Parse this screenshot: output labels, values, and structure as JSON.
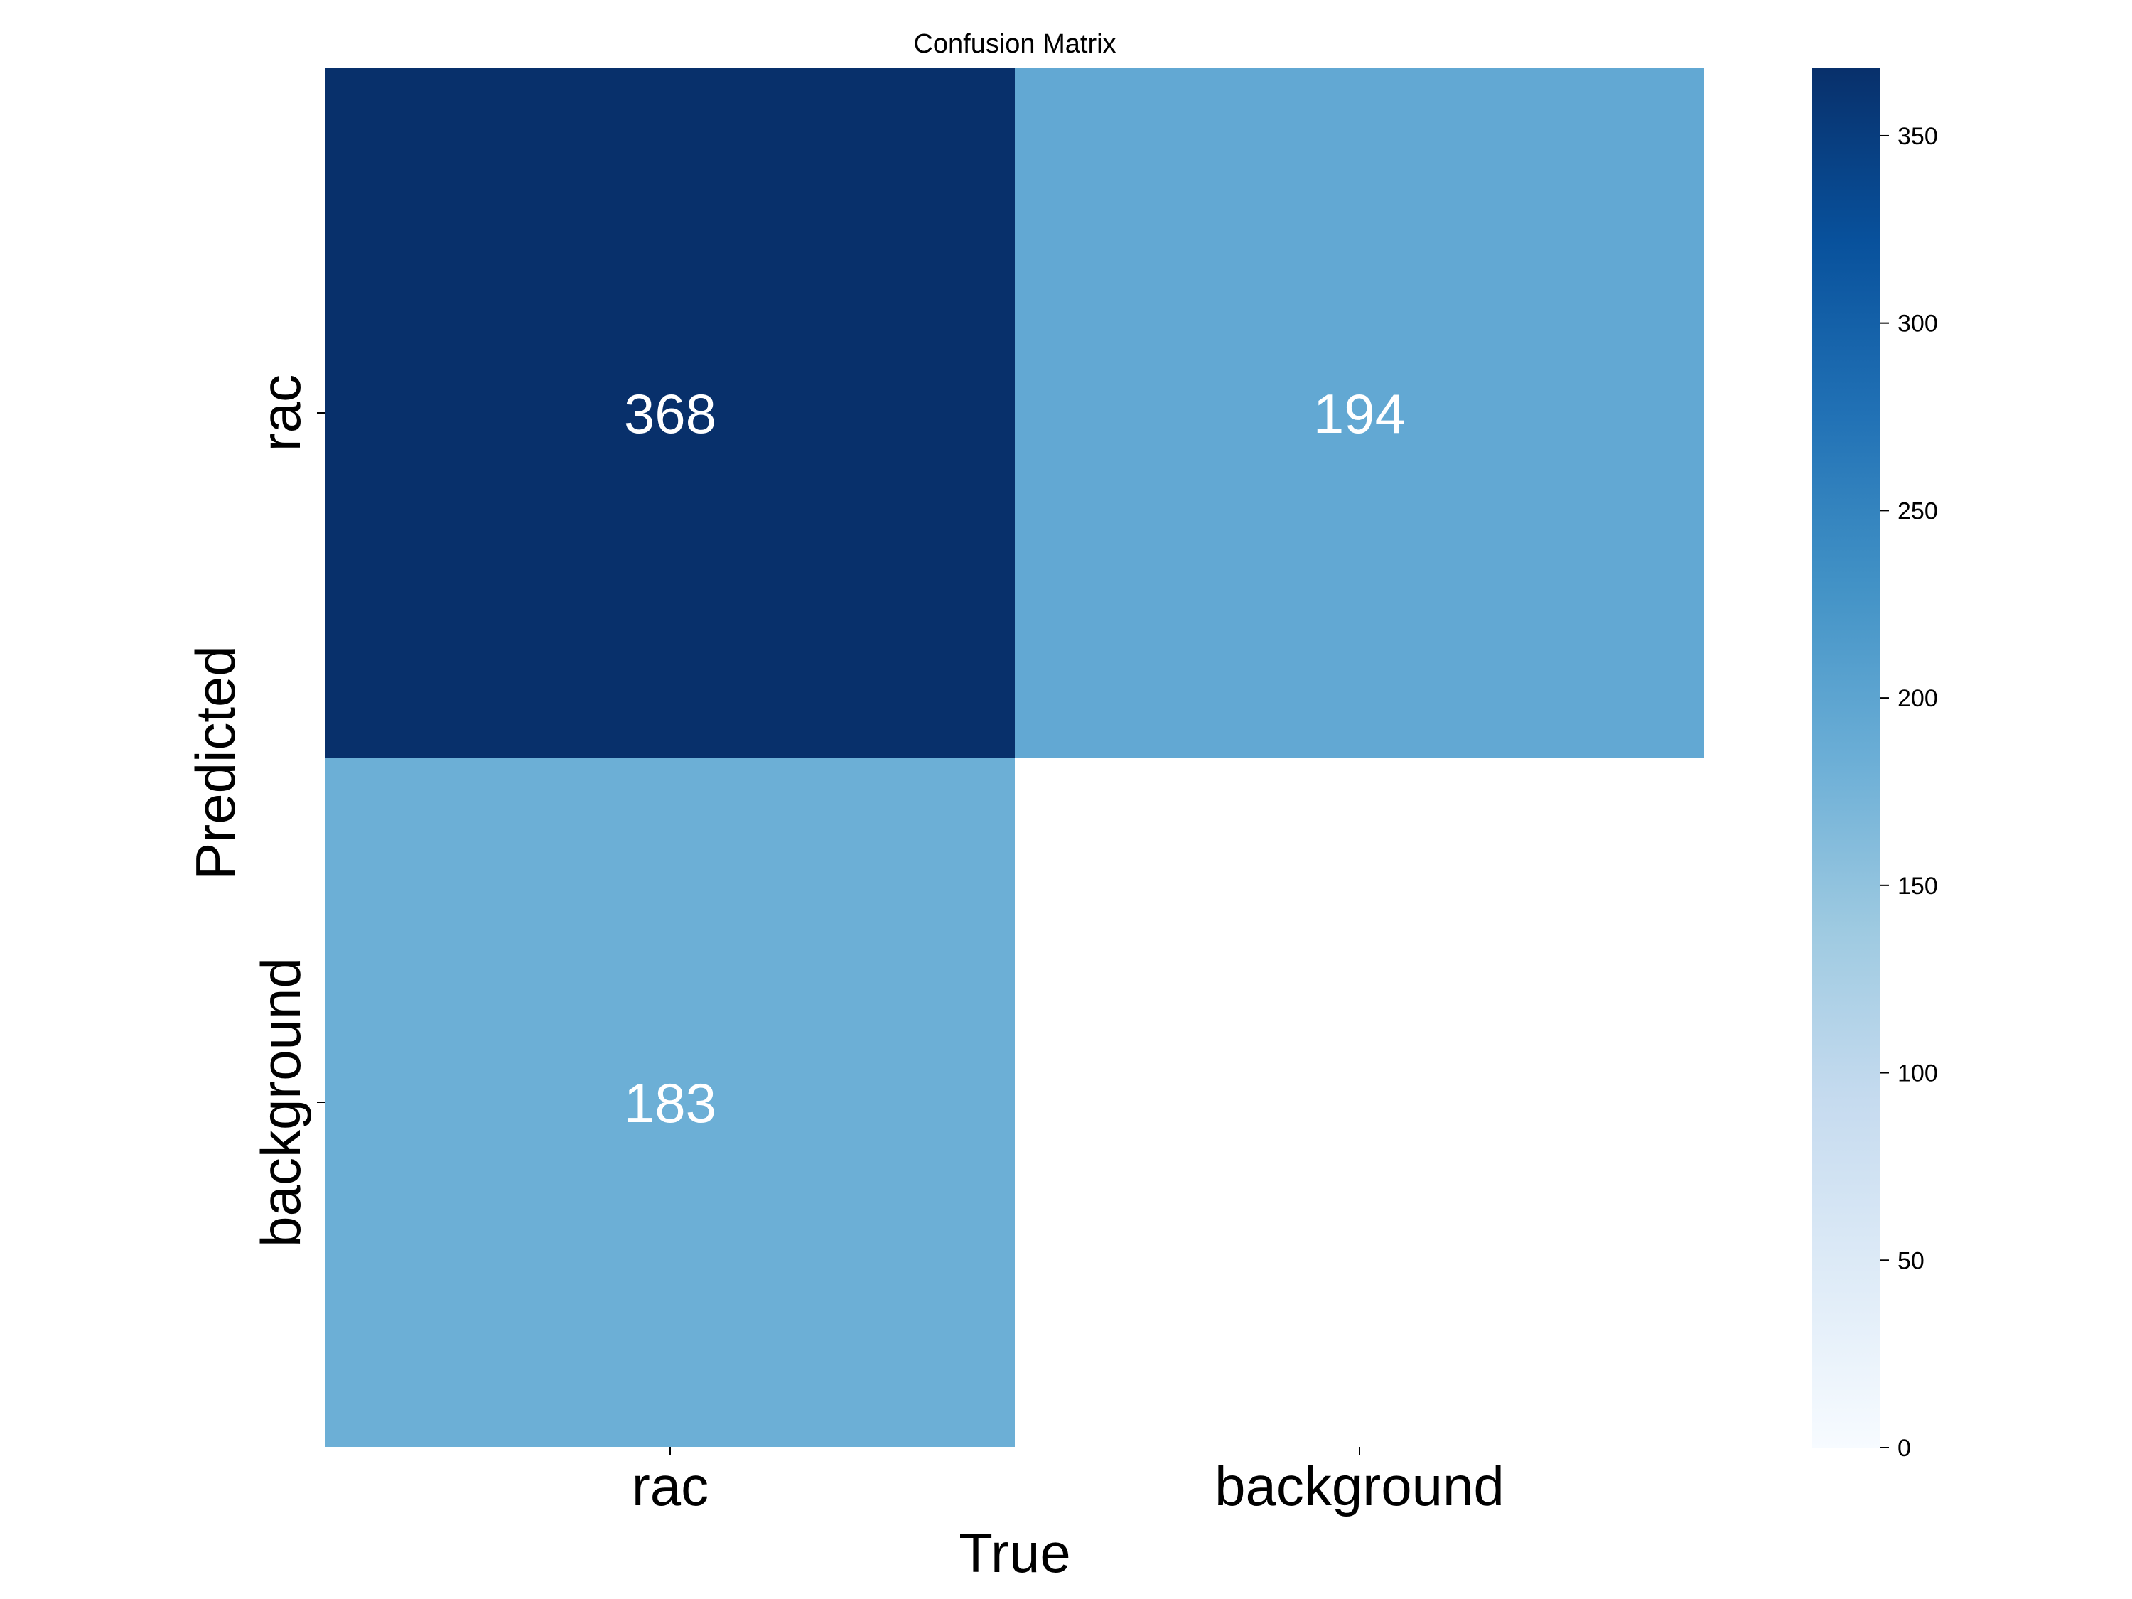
{
  "chart_data": {
    "type": "heatmap",
    "title": "Confusion Matrix",
    "xlabel": "True",
    "ylabel": "Predicted",
    "x_categories": [
      "rac",
      "background"
    ],
    "y_categories": [
      "rac",
      "background"
    ],
    "values": [
      [
        368,
        194
      ],
      [
        183,
        null
      ]
    ],
    "colormap": "Blues",
    "colorbar": {
      "min": 0,
      "max": 368,
      "ticks": [
        0,
        50,
        100,
        150,
        200,
        250,
        300,
        350
      ],
      "tick_labels": [
        "0",
        "50",
        "100",
        "150",
        "200",
        "250",
        "300",
        "350"
      ]
    },
    "annotation_color": "#ffffff",
    "grid": false
  }
}
